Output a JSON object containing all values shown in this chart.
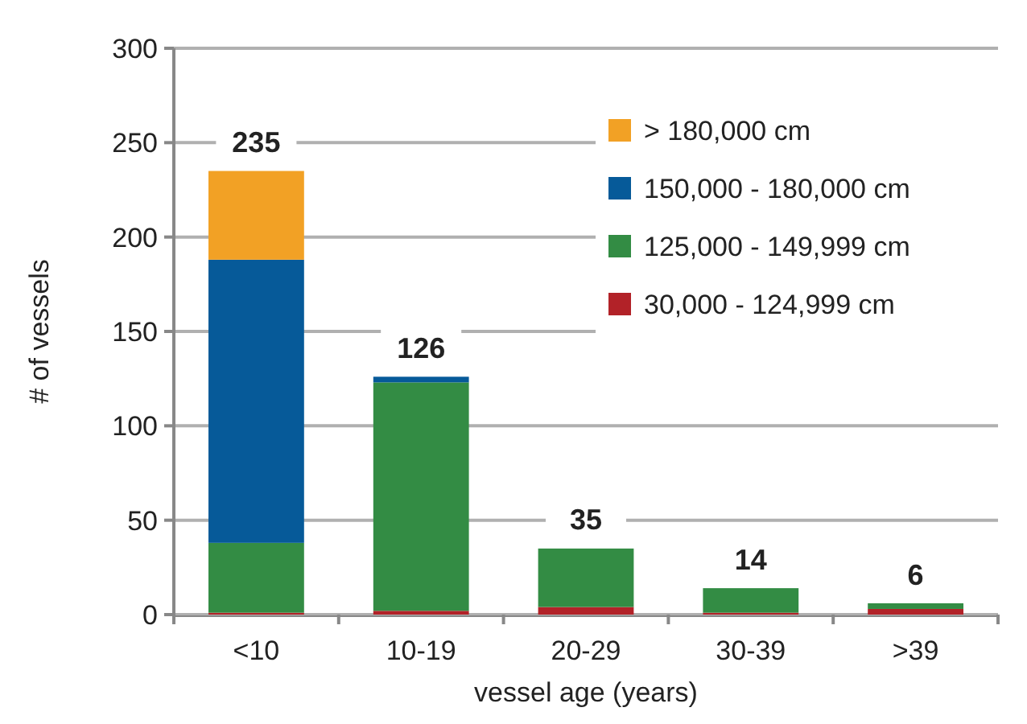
{
  "chart_data": {
    "type": "bar",
    "stacked": true,
    "xlabel": "vessel age (years)",
    "ylabel": "# of vessels",
    "categories": [
      "<10",
      "10-19",
      "20-29",
      "30-39",
      ">39"
    ],
    "series": [
      {
        "name": "30,000 - 124,999 cm",
        "color": "#b22228",
        "values": [
          1,
          2,
          4,
          1,
          3
        ]
      },
      {
        "name": "125,000 - 149,999 cm",
        "color": "#338c44",
        "values": [
          37,
          121,
          31,
          13,
          3
        ]
      },
      {
        "name": "150,000 - 180,000 cm",
        "color": "#065a99",
        "values": [
          150,
          3,
          0,
          0,
          0
        ]
      },
      {
        "name": "> 180,000 cm",
        "color": "#f2a125",
        "values": [
          47,
          0,
          0,
          0,
          0
        ]
      }
    ],
    "totals": [
      "235",
      "126",
      "35",
      "14",
      "6"
    ],
    "ylim": [
      0,
      300
    ],
    "yticks": [
      0,
      50,
      100,
      150,
      200,
      250,
      300
    ],
    "grid": "y",
    "legend": "top right"
  }
}
